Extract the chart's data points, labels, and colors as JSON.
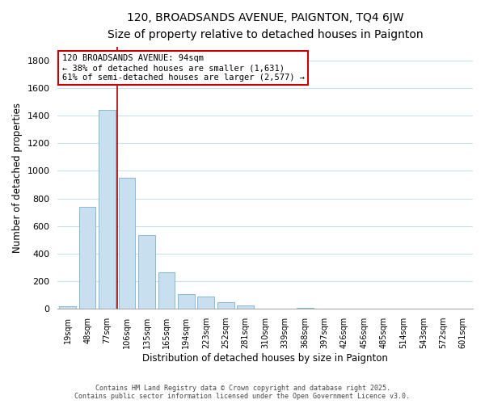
{
  "title": "120, BROADSANDS AVENUE, PAIGNTON, TQ4 6JW",
  "subtitle": "Size of property relative to detached houses in Paignton",
  "bar_values": [
    20,
    740,
    1440,
    950,
    535,
    265,
    105,
    90,
    50,
    25,
    0,
    0,
    10,
    0,
    0,
    0,
    0,
    0,
    0,
    0,
    0
  ],
  "categories": [
    "19sqm",
    "48sqm",
    "77sqm",
    "106sqm",
    "135sqm",
    "165sqm",
    "194sqm",
    "223sqm",
    "252sqm",
    "281sqm",
    "310sqm",
    "339sqm",
    "368sqm",
    "397sqm",
    "426sqm",
    "456sqm",
    "485sqm",
    "514sqm",
    "543sqm",
    "572sqm",
    "601sqm"
  ],
  "bar_color": "#c8dff0",
  "bar_edge_color": "#7ab0d0",
  "vline_pos": 2.5,
  "vline_color": "#aa0000",
  "annotation_title": "120 BROADSANDS AVENUE: 94sqm",
  "annotation_line1": "← 38% of detached houses are smaller (1,631)",
  "annotation_line2": "61% of semi-detached houses are larger (2,577) →",
  "annotation_box_color": "#ffffff",
  "annotation_box_edgecolor": "#cc0000",
  "xlabel": "Distribution of detached houses by size in Paignton",
  "ylabel": "Number of detached properties",
  "ylim": [
    0,
    1900
  ],
  "yticks": [
    0,
    200,
    400,
    600,
    800,
    1000,
    1200,
    1400,
    1600,
    1800
  ],
  "footer1": "Contains HM Land Registry data © Crown copyright and database right 2025.",
  "footer2": "Contains public sector information licensed under the Open Government Licence v3.0.",
  "background_color": "#ffffff",
  "grid_color": "#c8dff0",
  "fig_width": 6.0,
  "fig_height": 5.0
}
